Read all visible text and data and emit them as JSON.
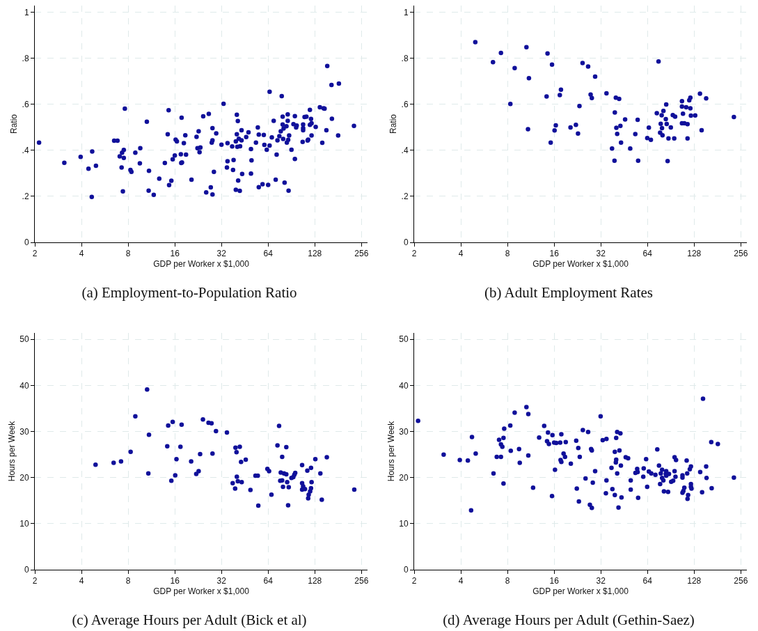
{
  "chart_data": [
    {
      "type": "scatter",
      "title": "(a) Employment-to-Population Ratio",
      "xlabel": "GDP per Worker x $1,000",
      "ylabel": "Ratio",
      "color": "#10109a",
      "marker": "circle",
      "log": "x",
      "grid": true,
      "xlim": [
        2,
        280
      ],
      "xticks": [
        2,
        4,
        8,
        16,
        32,
        64,
        128,
        256
      ],
      "ylim": [
        0,
        1.03
      ],
      "yticks": [
        0,
        {
          "value": 0.2,
          "label": ".2"
        },
        {
          "value": 0.4,
          "label": ".4"
        },
        {
          "value": 0.6,
          "label": ".6"
        },
        {
          "value": 0.8,
          "label": ".8"
        },
        1
      ],
      "x": [
        2.13,
        3.1,
        3.95,
        4.44,
        4.69,
        4.66,
        4.96,
        6.5,
        6.83,
        7.06,
        7.26,
        7.31,
        7.5,
        7.5,
        7.62,
        7.4,
        8.28,
        8.4,
        8.9,
        9.52,
        9.58,
        10.56,
        10.9,
        10.85,
        11.7,
        12.7,
        13.8,
        14.4,
        14.6,
        14.7,
        15.2,
        15.5,
        16,
        16.2,
        16.5,
        17.5,
        17.6,
        17.8,
        17.7,
        18.3,
        18.7,
        18.9,
        20.5,
        22.1,
        22.4,
        23.4,
        22.8,
        23.1,
        24.4,
        25.5,
        26.5,
        27.3,
        27.7,
        28,
        28,
        28,
        28.6,
        29.6,
        32,
        33,
        35,
        35,
        34.7,
        37.5,
        38,
        38.3,
        39.6,
        40.2,
        40.2,
        40.8,
        40.5,
        41.4,
        42.2,
        41,
        39.6,
        42,
        43.1,
        43.1,
        43.5,
        46.2,
        47.8,
        49.6,
        50,
        49.6,
        53.4,
        54.9,
        55.7,
        55.7,
        58.9,
        60,
        60.5,
        62.7,
        64,
        65.4,
        65.4,
        67.6,
        69.5,
        71.6,
        72.6,
        73.5,
        75.6,
        77.2,
        78.3,
        79.4,
        79.4,
        80,
        80.5,
        81.7,
        84,
        84.5,
        85.6,
        85.6,
        86.2,
        86.7,
        87.4,
        90.5,
        93.2,
        95.2,
        95.2,
        97,
        97.8,
        106.8,
        107.6,
        107.6,
        107.6,
        109.9,
        113,
        115,
        116,
        119,
        121,
        119,
        122,
        122,
        129.7,
        138,
        146,
        148,
        143,
        152,
        154,
        164,
        165,
        181,
        183,
        229
      ],
      "values": [
        0.434,
        0.346,
        0.372,
        0.32,
        0.395,
        0.198,
        0.333,
        0.442,
        0.442,
        0.374,
        0.326,
        0.39,
        0.402,
        0.367,
        0.582,
        0.222,
        0.315,
        0.307,
        0.39,
        0.344,
        0.41,
        0.525,
        0.311,
        0.225,
        0.207,
        0.277,
        0.345,
        0.47,
        0.575,
        0.249,
        0.268,
        0.361,
        0.378,
        0.447,
        0.439,
        0.383,
        0.345,
        0.348,
        0.542,
        0.432,
        0.466,
        0.382,
        0.273,
        0.459,
        0.41,
        0.413,
        0.483,
        0.392,
        0.548,
        0.217,
        0.559,
        0.239,
        0.434,
        0.497,
        0.444,
        0.208,
        0.307,
        0.474,
        0.425,
        0.603,
        0.432,
        0.353,
        0.326,
        0.417,
        0.315,
        0.358,
        0.439,
        0.47,
        0.555,
        0.528,
        0.416,
        0.451,
        0.418,
        0.269,
        0.229,
        0.224,
        0.488,
        0.444,
        0.298,
        0.458,
        0.479,
        0.406,
        0.357,
        0.299,
        0.434,
        0.5,
        0.469,
        0.24,
        0.253,
        0.467,
        0.424,
        0.403,
        0.25,
        0.655,
        0.421,
        0.457,
        0.529,
        0.273,
        0.382,
        0.444,
        0.462,
        0.483,
        0.636,
        0.547,
        0.513,
        0.45,
        0.495,
        0.26,
        0.505,
        0.434,
        0.529,
        0.557,
        0.446,
        0.225,
        0.465,
        0.403,
        0.514,
        0.549,
        0.363,
        0.5,
        0.508,
        0.437,
        0.497,
        0.513,
        0.488,
        0.545,
        0.547,
        0.443,
        0.447,
        0.576,
        0.537,
        0.511,
        0.518,
        0.465,
        0.502,
        0.588,
        0.583,
        0.582,
        0.433,
        0.488,
        0.767,
        0.685,
        0.538,
        0.465,
        0.691,
        0.507
      ]
    },
    {
      "type": "scatter",
      "title": "(b) Adult Employment Rates",
      "xlabel": "GDP per Worker x $1,000",
      "ylabel": "Ratio",
      "color": "#10109a",
      "marker": "circle",
      "log": "x",
      "grid": true,
      "xlim": [
        2,
        280
      ],
      "xticks": [
        2,
        4,
        8,
        16,
        32,
        64,
        128,
        256
      ],
      "ylim": [
        0,
        1.03
      ],
      "yticks": [
        0,
        {
          "value": 0.2,
          "label": ".2"
        },
        {
          "value": 0.4,
          "label": ".4"
        },
        {
          "value": 0.6,
          "label": ".6"
        },
        {
          "value": 0.8,
          "label": ".8"
        },
        1
      ],
      "x": [
        4.96,
        6.45,
        7.26,
        8.9,
        8.35,
        10.6,
        11,
        10.85,
        14.3,
        14.5,
        15.5,
        15.2,
        16.1,
        16.4,
        17.4,
        17.7,
        20.4,
        22.1,
        22.8,
        23.3,
        24.4,
        26.5,
        27.5,
        28,
        29.4,
        34.8,
        37.8,
        39.2,
        39.4,
        40,
        40.3,
        40.8,
        42,
        42.8,
        43.2,
        45.9,
        49.5,
        53.4,
        55.3,
        55.7,
        63.8,
        65.3,
        67.3,
        73.5,
        75.4,
        77.2,
        77.9,
        79,
        79.4,
        80,
        81.1,
        84,
        84.5,
        85.1,
        86.3,
        87.4,
        90.5,
        93.2,
        96.5,
        95.2,
        106.8,
        106.8,
        108.4,
        106.8,
        110.6,
        113.7,
        116,
        116,
        119,
        121,
        121,
        122,
        130,
        139.5,
        143,
        153,
        231
      ],
      "values": [
        0.871,
        0.784,
        0.824,
        0.758,
        0.602,
        0.849,
        0.714,
        0.492,
        0.635,
        0.822,
        0.773,
        0.434,
        0.487,
        0.509,
        0.641,
        0.664,
        0.5,
        0.511,
        0.473,
        0.593,
        0.78,
        0.765,
        0.643,
        0.628,
        0.721,
        0.648,
        0.408,
        0.355,
        0.565,
        0.629,
        0.498,
        0.472,
        0.624,
        0.507,
        0.434,
        0.535,
        0.408,
        0.471,
        0.533,
        0.355,
        0.454,
        0.499,
        0.446,
        0.562,
        0.787,
        0.477,
        0.516,
        0.553,
        0.497,
        0.466,
        0.572,
        0.536,
        0.6,
        0.515,
        0.354,
        0.452,
        0.5,
        0.554,
        0.547,
        0.452,
        0.614,
        0.591,
        0.56,
        0.518,
        0.518,
        0.588,
        0.452,
        0.514,
        0.618,
        0.629,
        0.583,
        0.551,
        0.552,
        0.647,
        0.488,
        0.626,
        0.545
      ]
    },
    {
      "type": "scatter",
      "title": "(c) Average Hours per Adult (Bick et al)",
      "xlabel": "GDP per Worker x $1,000",
      "ylabel": "Hours per Week",
      "color": "#10109a",
      "marker": "circle",
      "log": "x",
      "grid": true,
      "xlim": [
        2,
        280
      ],
      "xticks": [
        2,
        4,
        8,
        16,
        32,
        64,
        128,
        256
      ],
      "ylim": [
        0,
        51.4
      ],
      "yticks": [
        0,
        10,
        20,
        30,
        40,
        50
      ],
      "x": [
        4.93,
        6.45,
        7.2,
        8.3,
        8.9,
        10.6,
        10.9,
        10.8,
        14.3,
        14.5,
        15.2,
        15.5,
        16.1,
        16.4,
        17.4,
        17.7,
        20.4,
        22,
        22.8,
        23.3,
        24.3,
        26.4,
        27.6,
        28,
        29.5,
        34.7,
        37.8,
        39.2,
        39.4,
        40,
        40.2,
        40.8,
        42,
        42.8,
        43.2,
        45.9,
        49.2,
        53,
        54.9,
        55.3,
        63.3,
        64.9,
        67.2,
        73.5,
        75.3,
        76.6,
        77.2,
        78.8,
        78.8,
        79.8,
        81,
        83.8,
        83.8,
        84.9,
        86.1,
        86.9,
        90.5,
        93,
        94.4,
        95.7,
        106,
        106,
        107.6,
        106,
        110.6,
        114.5,
        116,
        116.9,
        119.4,
        121,
        121,
        122,
        129,
        139,
        142,
        153,
        230
      ],
      "values": [
        22.8,
        23.2,
        23.5,
        25.6,
        33.3,
        39.1,
        29.3,
        20.9,
        26.8,
        31.3,
        19.3,
        32.1,
        20.5,
        24,
        26.7,
        31.5,
        23.5,
        20.8,
        21.4,
        25.1,
        32.6,
        31.9,
        31.8,
        25.2,
        30.1,
        29.8,
        18.8,
        17.6,
        26.5,
        25.5,
        20.2,
        19.2,
        26.7,
        23.4,
        19,
        23.9,
        17.3,
        20.4,
        20.4,
        13.9,
        21.9,
        21.4,
        16.3,
        27,
        31.2,
        19.3,
        21.1,
        24.5,
        19.4,
        18,
        20.9,
        26.6,
        20.7,
        19,
        14,
        17.9,
        19.9,
        20.1,
        20.6,
        21,
        22.7,
        18.8,
        18.1,
        17.4,
        17.5,
        21.5,
        15.5,
        16.3,
        17,
        22.1,
        17.7,
        19,
        24,
        20.9,
        15.2,
        24.4,
        17.4
      ]
    },
    {
      "type": "scatter",
      "title": "(d) Average Hours per Adult (Gethin-Saez)",
      "xlabel": "GDP per Worker x $1,000",
      "ylabel": "Hours per Week",
      "color": "#10109a",
      "marker": "circle",
      "log": "x",
      "grid": true,
      "xlim": [
        2,
        280
      ],
      "xticks": [
        2,
        4,
        8,
        16,
        32,
        64,
        128,
        256
      ],
      "ylim": [
        0,
        51.4
      ],
      "yticks": [
        0,
        10,
        20,
        30,
        40,
        50
      ],
      "x": [
        2.12,
        3.1,
        3.94,
        4.44,
        4.72,
        4.66,
        4.99,
        6.5,
        6.82,
        7.06,
        7.26,
        7.26,
        7.41,
        7.54,
        7.54,
        7.62,
        8.34,
        8.4,
        8.9,
        9.5,
        9.6,
        10.6,
        10.9,
        10.9,
        11.7,
        12.8,
        13.8,
        14.4,
        14.6,
        14.8,
        15.5,
        15.6,
        16,
        16.5,
        16.2,
        17.5,
        17.8,
        17.6,
        17.8,
        18.4,
        18.8,
        19,
        20.5,
        22.2,
        22.4,
        22.9,
        23.1,
        23.4,
        24.5,
        25.5,
        26.5,
        27.2,
        28,
        27.7,
        28,
        28.4,
        29.4,
        31.9,
        32.9,
        34.8,
        34.8,
        34.5,
        37.5,
        38,
        39.4,
        39.4,
        40,
        40.2,
        40.2,
        40.8,
        40.8,
        42.2,
        42.8,
        41.6,
        43.1,
        43.5,
        46.3,
        48,
        49.9,
        49.9,
        53.5,
        54.9,
        55.3,
        55.7,
        60.5,
        60.1,
        62.7,
        63.7,
        65.3,
        67.7,
        72,
        74,
        75.9,
        77.2,
        78,
        79.5,
        79.5,
        81,
        81.7,
        84,
        84.5,
        84.5,
        86.9,
        88,
        91,
        93.7,
        95.7,
        95.7,
        97.8,
        97,
        107.6,
        107.6,
        107.6,
        109,
        110.6,
        114.5,
        115.4,
        116,
        117,
        120,
        122,
        122,
        122,
        123,
        140,
        144,
        146,
        153,
        154,
        165,
        166,
        182,
        231
      ],
      "values": [
        32.3,
        25,
        23.8,
        23.7,
        28.8,
        12.9,
        25.2,
        20.9,
        24.5,
        28.2,
        24.5,
        27.2,
        26.7,
        28.6,
        18.7,
        30.6,
        31.3,
        25.8,
        34.1,
        26.2,
        23.2,
        35.3,
        33.8,
        24.8,
        17.8,
        28.7,
        31.2,
        27.9,
        29.8,
        27.3,
        16,
        29.2,
        27.6,
        27.5,
        21.7,
        27.6,
        29.4,
        23.8,
        23.4,
        25.2,
        24.5,
        27.7,
        23,
        28,
        17.6,
        26.4,
        14.8,
        24.5,
        30.3,
        19.8,
        29.9,
        14.1,
        13.4,
        26.2,
        25.9,
        18.9,
        21.4,
        33.3,
        28.1,
        28.4,
        19.4,
        16.6,
        22.1,
        17.5,
        16.2,
        25.6,
        23.3,
        23.9,
        28.6,
        29.9,
        20.9,
        25.9,
        29.6,
        13.5,
        22.6,
        15.7,
        24.4,
        24.2,
        19.4,
        17.4,
        21,
        21.9,
        21.2,
        15.6,
        22,
        20.2,
        24,
        18,
        21.3,
        20.9,
        20.6,
        26.1,
        22.6,
        18.6,
        20.9,
        21.7,
        19.9,
        19.4,
        17,
        20.8,
        21.4,
        20.4,
        16.9,
        20.8,
        19.1,
        19.3,
        24.4,
        21.4,
        23.8,
        20.2,
        20.5,
        20,
        16.7,
        17.1,
        17.8,
        23.7,
        20.9,
        15.4,
        16.2,
        21.8,
        22.4,
        18.6,
        18,
        17.6,
        21.2,
        16.8,
        37.1,
        22.4,
        19.9,
        27.7,
        17.7,
        27.3,
        20
      ]
    }
  ]
}
